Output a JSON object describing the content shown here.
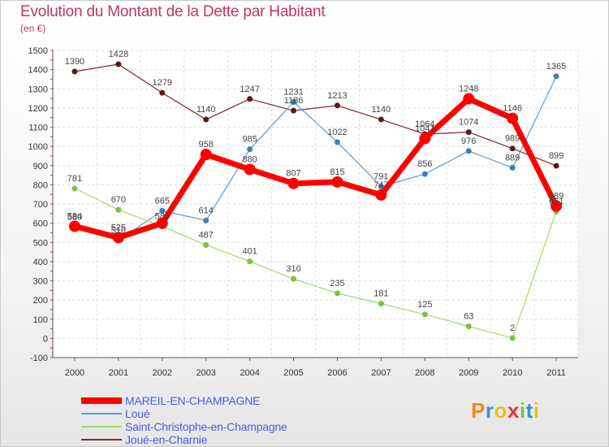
{
  "header": {
    "title": "Evolution du Montant de la Dette par Habitant",
    "subtitle": "(en €)"
  },
  "logo": {
    "text": "Proxiti",
    "colors": [
      "#f08a1c",
      "#3a8fd6",
      "#e8c21a",
      "#e23b3b",
      "#7bc142",
      "#3a8fd6",
      "#e8c21a"
    ]
  },
  "chart_data": {
    "type": "line",
    "x": [
      "2000",
      "2001",
      "2002",
      "2003",
      "2004",
      "2005",
      "2006",
      "2007",
      "2008",
      "2009",
      "2010",
      "2011"
    ],
    "ylim": [
      -100,
      1500
    ],
    "yticks": [
      "-100",
      "0",
      "100",
      "200",
      "300",
      "400",
      "500",
      "600",
      "700",
      "800",
      "900",
      "1000",
      "1100",
      "1200",
      "1300",
      "1400",
      "1500"
    ],
    "grid": true,
    "legend_position": "bottom-left",
    "series": [
      {
        "name": "Joué-en-Charnie",
        "color": "#7a2a2a",
        "marker": "#5a1a1a",
        "width": 1.2,
        "r": 3.5,
        "values": [
          1390,
          1428,
          1279,
          1140,
          1247,
          1186,
          1213,
          1140,
          1064,
          1074,
          989,
          899
        ],
        "labels": [
          "1390",
          "1428",
          "1279",
          "1140",
          "1247",
          "1186",
          "1213",
          "1140",
          "1064",
          "1074",
          "989",
          "899"
        ]
      },
      {
        "name": "Loué",
        "color": "#5b9bd0",
        "marker": "#3d7fc0",
        "width": 1.2,
        "r": 3.5,
        "values": [
          580,
          510,
          665,
          614,
          985,
          1231,
          1022,
          791,
          856,
          976,
          889,
          1365
        ],
        "labels": [
          "580",
          "510",
          "665",
          "614",
          "985",
          "1231",
          "1022",
          "791",
          "856",
          "976",
          "889",
          "1365"
        ]
      },
      {
        "name": "Saint-Christophe-en-Champagne",
        "color": "#a6d96a",
        "marker": "#7bc142",
        "width": 1.2,
        "r": 3.5,
        "values": [
          781,
          670,
          583,
          487,
          401,
          310,
          235,
          181,
          125,
          63,
          2,
          661
        ],
        "labels": [
          "781",
          "670",
          "583",
          "487",
          "401",
          "310",
          "235",
          "181",
          "125",
          "63",
          "2",
          "661"
        ]
      },
      {
        "name": "MAREIL-EN-CHAMPAGNE",
        "color": "#ff0000",
        "marker": "#ff0000",
        "width": 7,
        "r": 7,
        "values": [
          584,
          525,
          600,
          958,
          880,
          807,
          815,
          747,
          1041,
          1248,
          1146,
          689
        ],
        "labels": [
          "584",
          "525",
          "",
          "958",
          "880",
          "807",
          "815",
          "747",
          "1041",
          "1248",
          "1146",
          "689"
        ]
      }
    ],
    "legend": [
      {
        "name": "MAREIL-EN-CHAMPAGNE",
        "color": "#ff0000",
        "thickness": 8
      },
      {
        "name": "Loué",
        "color": "#5b9bd0",
        "thickness": 2
      },
      {
        "name": "Saint-Christophe-en-Champagne",
        "color": "#a6d96a",
        "thickness": 2
      },
      {
        "name": "Joué-en-Charnie",
        "color": "#7a2a2a",
        "thickness": 2
      }
    ]
  }
}
